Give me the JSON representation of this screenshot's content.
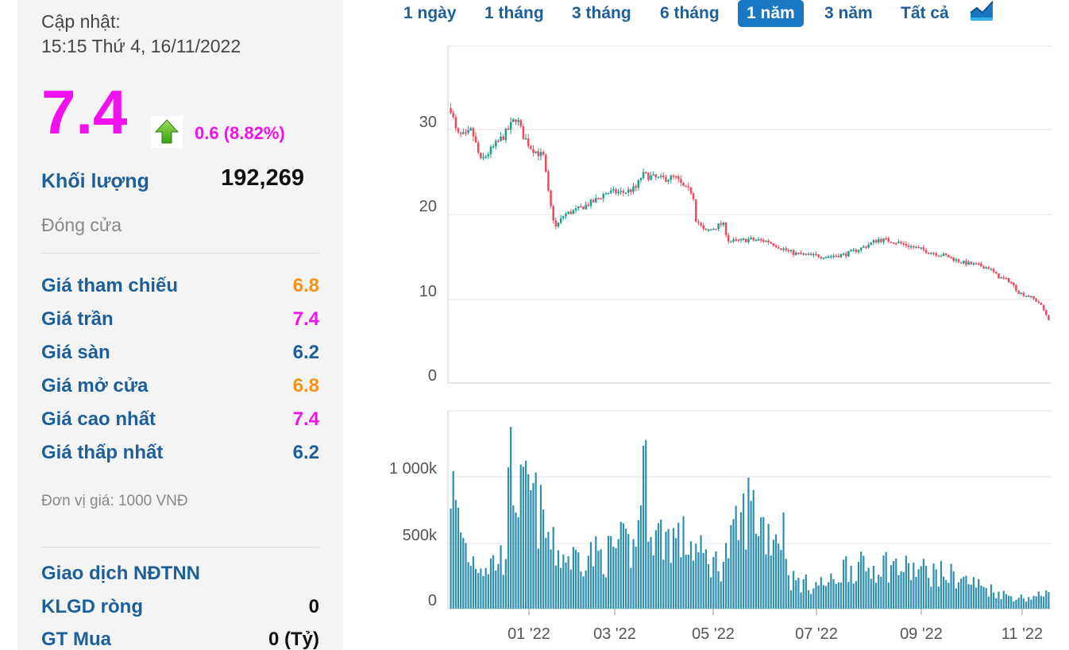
{
  "update": {
    "label": "Cập nhật:",
    "time": "15:15 Thứ 4, 16/11/2022"
  },
  "price": {
    "value": "7.4",
    "change": "0.6 (8.82%)",
    "arrow_icon": "green-up-arrow-icon"
  },
  "volume": {
    "label": "Khối lượng",
    "value": "192,269"
  },
  "status": "Đóng cửa",
  "stats": [
    {
      "label": "Giá tham chiếu",
      "value": "6.8",
      "color": "#f7931a"
    },
    {
      "label": "Giá trần",
      "value": "7.4",
      "color": "#f20ff0"
    },
    {
      "label": "Giá sàn",
      "value": "6.2",
      "color": "#1f5f99"
    },
    {
      "label": "Giá mở cửa",
      "value": "6.8",
      "color": "#f7931a"
    },
    {
      "label": "Giá cao nhất",
      "value": "7.4",
      "color": "#f20ff0"
    },
    {
      "label": "Giá thấp nhất",
      "value": "6.2",
      "color": "#1f5f99"
    }
  ],
  "unit_note": "Đơn vị giá: 1000 VNĐ",
  "foreign": {
    "title": "Giao dịch NĐTNN",
    "rows": [
      {
        "label": "KLGD ròng",
        "value": "0"
      },
      {
        "label": "GT Mua",
        "value": "0 (Tỷ)"
      }
    ]
  },
  "ranges": [
    {
      "label": "1 ngày",
      "active": false
    },
    {
      "label": "1 tháng",
      "active": false
    },
    {
      "label": "3 tháng",
      "active": false
    },
    {
      "label": "6 tháng",
      "active": false
    },
    {
      "label": "1 năm",
      "active": true
    },
    {
      "label": "3 năm",
      "active": false
    },
    {
      "label": "Tất cả",
      "active": false
    }
  ],
  "chart_icon": "area-chart-icon",
  "chart_data": {
    "type": "candlestick",
    "price_axis": {
      "ticks": [
        "30",
        "20",
        "10",
        "0"
      ],
      "range": [
        0,
        38
      ]
    },
    "volume_axis": {
      "ticks": [
        "1 000k",
        "500k",
        "0"
      ],
      "range": [
        0,
        1400000
      ]
    },
    "x_ticks": [
      "01 '22",
      "03 '22",
      "05 '22",
      "07 '22",
      "09 '22",
      "11 '22"
    ],
    "colors": {
      "up": "#1a9e8f",
      "down": "#f24a5c",
      "volume": "#2f8fae"
    },
    "price_path": [
      [
        0.0,
        31.0
      ],
      [
        0.01,
        28.0
      ],
      [
        0.025,
        27.8
      ],
      [
        0.035,
        28.5
      ],
      [
        0.05,
        25.0
      ],
      [
        0.07,
        26.5
      ],
      [
        0.09,
        28.0
      ],
      [
        0.11,
        30.0
      ],
      [
        0.12,
        28.0
      ],
      [
        0.135,
        26.5
      ],
      [
        0.155,
        25.5
      ],
      [
        0.165,
        20.5
      ],
      [
        0.175,
        17.5
      ],
      [
        0.19,
        19.0
      ],
      [
        0.21,
        19.5
      ],
      [
        0.24,
        20.5
      ],
      [
        0.26,
        21.5
      ],
      [
        0.29,
        21.5
      ],
      [
        0.31,
        22.0
      ],
      [
        0.32,
        23.5
      ],
      [
        0.35,
        23.0
      ],
      [
        0.375,
        23.2
      ],
      [
        0.39,
        22.0
      ],
      [
        0.405,
        21.5
      ],
      [
        0.41,
        18.5
      ],
      [
        0.425,
        17.0
      ],
      [
        0.44,
        17.5
      ],
      [
        0.455,
        18.0
      ],
      [
        0.465,
        16.0
      ],
      [
        0.48,
        16.0
      ],
      [
        0.5,
        16.2
      ],
      [
        0.53,
        16.0
      ],
      [
        0.56,
        15.0
      ],
      [
        0.575,
        14.6
      ],
      [
        0.6,
        14.4
      ],
      [
        0.63,
        14.3
      ],
      [
        0.66,
        14.5
      ],
      [
        0.69,
        15.3
      ],
      [
        0.715,
        16.2
      ],
      [
        0.74,
        16.0
      ],
      [
        0.77,
        15.4
      ],
      [
        0.8,
        14.8
      ],
      [
        0.83,
        14.3
      ],
      [
        0.855,
        13.6
      ],
      [
        0.88,
        13.3
      ],
      [
        0.9,
        13.0
      ],
      [
        0.915,
        12.0
      ],
      [
        0.935,
        11.5
      ],
      [
        0.95,
        10.2
      ],
      [
        0.97,
        9.7
      ],
      [
        0.985,
        9.0
      ],
      [
        1.0,
        7.2
      ]
    ],
    "volume_path": [
      [
        0.0,
        1000000
      ],
      [
        0.01,
        700000
      ],
      [
        0.03,
        400000
      ],
      [
        0.06,
        330000
      ],
      [
        0.09,
        400000
      ],
      [
        0.1,
        1050000
      ],
      [
        0.12,
        800000
      ],
      [
        0.13,
        900000
      ],
      [
        0.15,
        700000
      ],
      [
        0.17,
        450000
      ],
      [
        0.2,
        380000
      ],
      [
        0.23,
        420000
      ],
      [
        0.26,
        400000
      ],
      [
        0.28,
        480000
      ],
      [
        0.31,
        450000
      ],
      [
        0.32,
        1150000
      ],
      [
        0.34,
        560000
      ],
      [
        0.37,
        550000
      ],
      [
        0.4,
        500000
      ],
      [
        0.42,
        400000
      ],
      [
        0.45,
        330000
      ],
      [
        0.47,
        500000
      ],
      [
        0.5,
        800000
      ],
      [
        0.53,
        580000
      ],
      [
        0.56,
        600000
      ],
      [
        0.565,
        230000
      ],
      [
        0.6,
        180000
      ],
      [
        0.64,
        200000
      ],
      [
        0.66,
        330000
      ],
      [
        0.7,
        300000
      ],
      [
        0.72,
        350000
      ],
      [
        0.76,
        300000
      ],
      [
        0.8,
        280000
      ],
      [
        0.84,
        250000
      ],
      [
        0.87,
        200000
      ],
      [
        0.9,
        150000
      ],
      [
        0.93,
        100000
      ],
      [
        0.96,
        80000
      ],
      [
        0.99,
        100000
      ],
      [
        1.0,
        200000
      ]
    ]
  }
}
